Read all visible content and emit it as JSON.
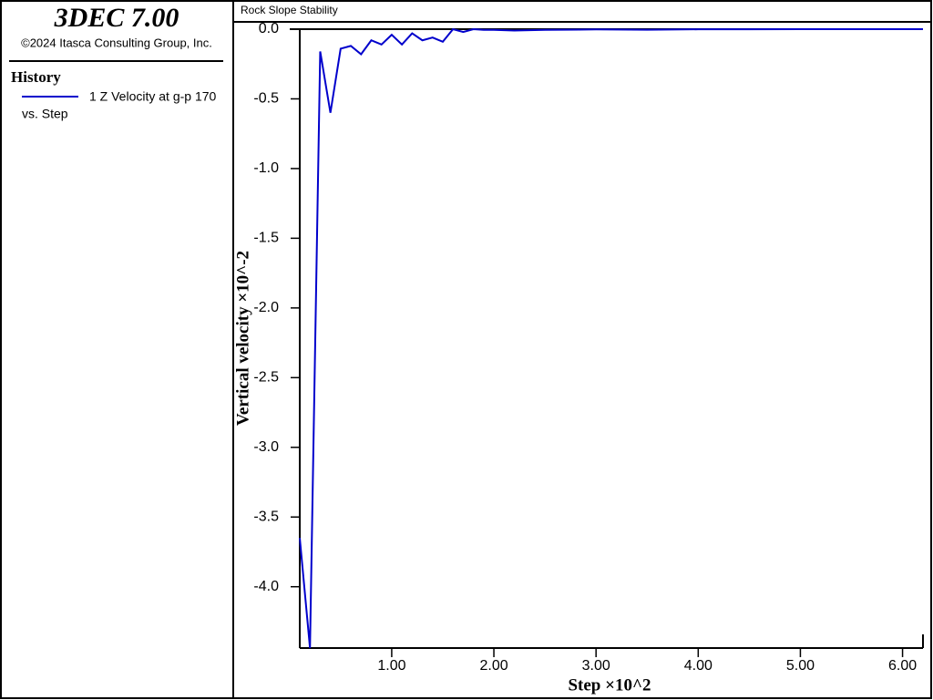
{
  "sidebar": {
    "app_title": "3DEC 7.00",
    "copyright": "©2024 Itasca Consulting Group, Inc.",
    "legend_heading": "History",
    "vs_label": "vs. Step"
  },
  "chart_data": {
    "type": "line",
    "title": "Rock Slope Stability",
    "x_label": "Step ×10^2",
    "y_label": "Vertical velocity ×10^-2",
    "x": [
      0.1,
      0.2,
      0.3,
      0.4,
      0.5,
      0.6,
      0.7,
      0.8,
      0.9,
      1.0,
      1.1,
      1.2,
      1.3,
      1.4,
      1.5,
      1.6,
      1.7,
      1.8,
      1.9,
      2.0,
      2.2,
      2.5,
      3.0,
      3.5,
      4.0,
      4.5,
      5.0,
      5.5,
      6.0,
      6.2
    ],
    "series": [
      {
        "name": "1 Z Velocity at g-p 170",
        "color": "#0000cc",
        "values": [
          -3.65,
          -4.44,
          -0.16,
          -0.6,
          -0.14,
          -0.12,
          -0.18,
          -0.08,
          -0.11,
          -0.04,
          -0.11,
          -0.03,
          -0.08,
          -0.06,
          -0.09,
          0.0,
          -0.02,
          0.0,
          -0.005,
          -0.005,
          -0.01,
          -0.005,
          -0.002,
          -0.004,
          -0.001,
          -0.001,
          0.0,
          0.0,
          0.0,
          0.0
        ]
      }
    ],
    "xlim": [
      0.1,
      6.2
    ],
    "xticks": [
      {
        "value": 1,
        "label": "1.00"
      },
      {
        "value": 2,
        "label": "2.00"
      },
      {
        "value": 3,
        "label": "3.00"
      },
      {
        "value": 4,
        "label": "4.00"
      },
      {
        "value": 5,
        "label": "5.00"
      },
      {
        "value": 6,
        "label": "6.00"
      }
    ],
    "ylim": [
      -4.44,
      0
    ],
    "yticks": [
      {
        "value": 0,
        "label": "0.0"
      },
      -0.5,
      {
        "value": -1,
        "label": "-1.0"
      },
      -1.5,
      {
        "value": -2,
        "label": "-2.0"
      },
      -2.5,
      {
        "value": -3,
        "label": "-3.0"
      },
      -3.5,
      {
        "value": -4,
        "label": "-4.0"
      }
    ]
  }
}
